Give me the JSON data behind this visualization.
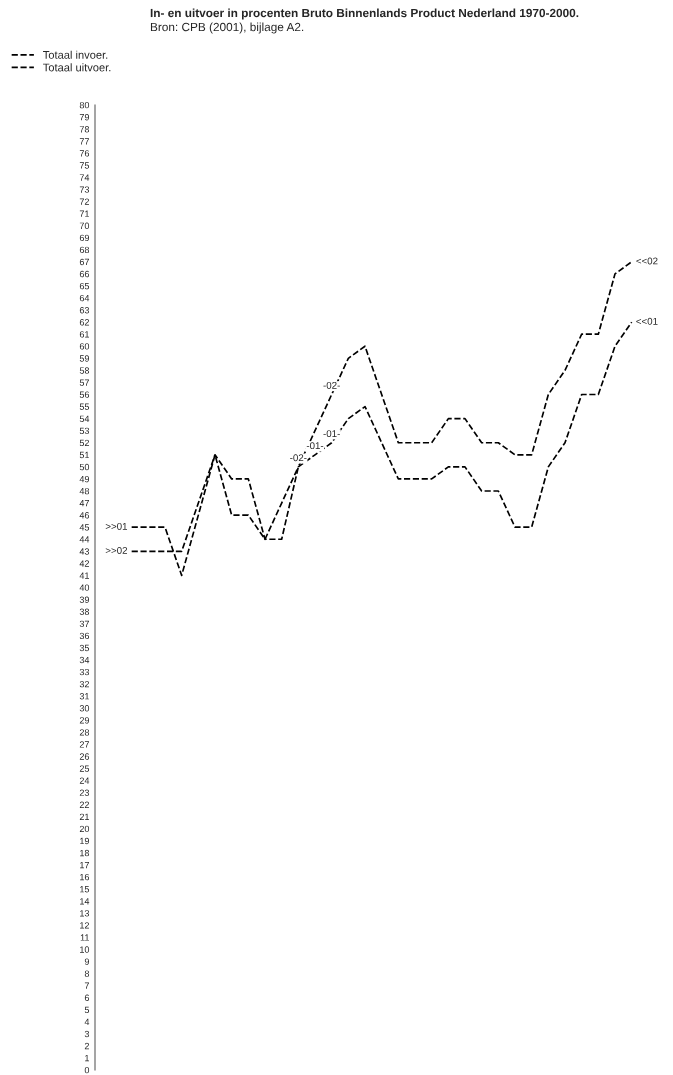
{
  "chart_data": {
    "type": "line",
    "title": "In- en uitvoer in procenten Bruto Binnenlands Product Nederland 1970-2000.",
    "subtitle": "Bron: CPB (2001), bijlage A2.",
    "categories": [
      null,
      null,
      null,
      null,
      null,
      null,
      null,
      null,
      null,
      null,
      null,
      null,
      null,
      null,
      null,
      null,
      null,
      null,
      null,
      null,
      null,
      null,
      null,
      null,
      null,
      null,
      null,
      null,
      null,
      null,
      null
    ],
    "series": [
      {
        "name": "Totaal invoer.",
        "color": "#000000",
        "values": [
          45,
          45,
          45,
          41,
          46,
          51,
          46,
          46,
          44,
          47,
          50,
          51,
          52,
          54,
          55,
          52,
          49,
          49,
          49,
          50,
          50,
          48,
          48,
          45,
          45,
          50,
          52,
          56,
          56,
          60,
          62
        ]
      },
      {
        "name": "Totaal uitvoer.",
        "color": "#000000",
        "values": [
          43,
          43,
          43,
          43,
          47,
          51,
          49,
          49,
          44,
          44,
          50,
          53,
          56,
          59,
          60,
          56,
          52,
          52,
          52,
          54,
          54,
          52,
          52,
          51,
          51,
          56,
          58,
          61,
          61,
          66,
          67
        ]
      }
    ],
    "annotations": [
      ">>01",
      ">>02",
      "<<01",
      "<<02",
      {
        "text": "-02-",
        "y": 50
      },
      {
        "text": "-01-",
        "y": 51
      },
      {
        "text": "-01-",
        "y": 52
      },
      {
        "text": "-02-",
        "y": 56
      }
    ],
    "ylim": [
      0,
      80
    ],
    "yticks": [
      0,
      1,
      2,
      3,
      4,
      5,
      6,
      7,
      8,
      9,
      10,
      11,
      12,
      13,
      14,
      15,
      16,
      17,
      18,
      19,
      20,
      21,
      22,
      23,
      24,
      25,
      26,
      27,
      28,
      29,
      30,
      31,
      32,
      33,
      34,
      35,
      36,
      37,
      38,
      39,
      40,
      41,
      42,
      43,
      44,
      45,
      46,
      47,
      48,
      49,
      50,
      51,
      52,
      53,
      54,
      55,
      56,
      57,
      58,
      59,
      60,
      61,
      62,
      63,
      64,
      65,
      66,
      67,
      68,
      69,
      70,
      71,
      72,
      73,
      74,
      75,
      76,
      77,
      78,
      79,
      80
    ],
    "tick_labels": "y",
    "grid": false,
    "legend": "top left",
    "marker": "none",
    "line_style": "dashed"
  }
}
